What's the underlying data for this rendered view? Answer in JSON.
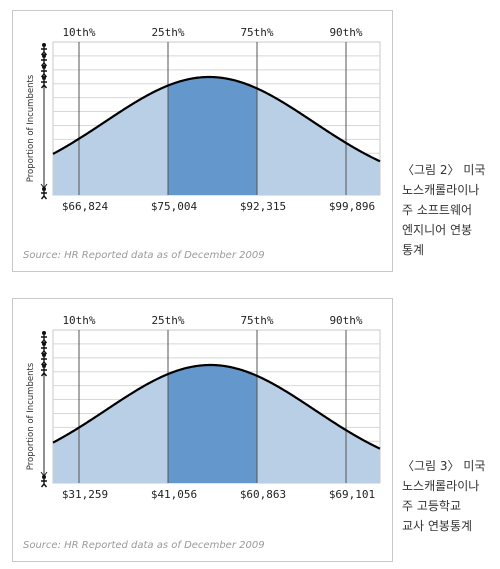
{
  "charts": [
    {
      "source": "Source: HR Reported data as of December  2009",
      "caption_lines": [
        "〈그림 2〉 미국",
        "노스캐롤라이나",
        "주 소프트웨어",
        "엔지니어 연봉",
        "통계"
      ]
    },
    {
      "source": "Source: HR Reported data as of December  2009",
      "caption_lines": [
        "〈그림 3〉 미국",
        "노스캐롤라이나",
        "주 고등학교",
        "교사 연봉통계"
      ]
    }
  ],
  "colors": {
    "tail": "#b9cfe6",
    "middle": "#6497cb",
    "curve": "#000000",
    "grid": "#c8c8c8",
    "percentile_line": "#555555"
  },
  "chart_data": [
    {
      "type": "area",
      "title": "",
      "ylabel": "Proportion of Incumbents",
      "percentile_labels": [
        "10th%",
        "25th%",
        "75th%",
        "90th%"
      ],
      "x_labels": [
        "$66,824",
        "$75,004",
        "$92,315",
        "$99,896"
      ],
      "x_values": [
        66824,
        75004,
        92315,
        99896
      ],
      "peak_salary": 83000,
      "grid": true
    },
    {
      "type": "area",
      "title": "",
      "ylabel": "Proportion of Incumbents",
      "percentile_labels": [
        "10th%",
        "25th%",
        "75th%",
        "90th%"
      ],
      "x_labels": [
        "$31,259",
        "$41,056",
        "$60,863",
        "$69,101"
      ],
      "x_values": [
        31259,
        41056,
        60863,
        69101
      ],
      "peak_salary": 50500,
      "grid": true
    }
  ]
}
